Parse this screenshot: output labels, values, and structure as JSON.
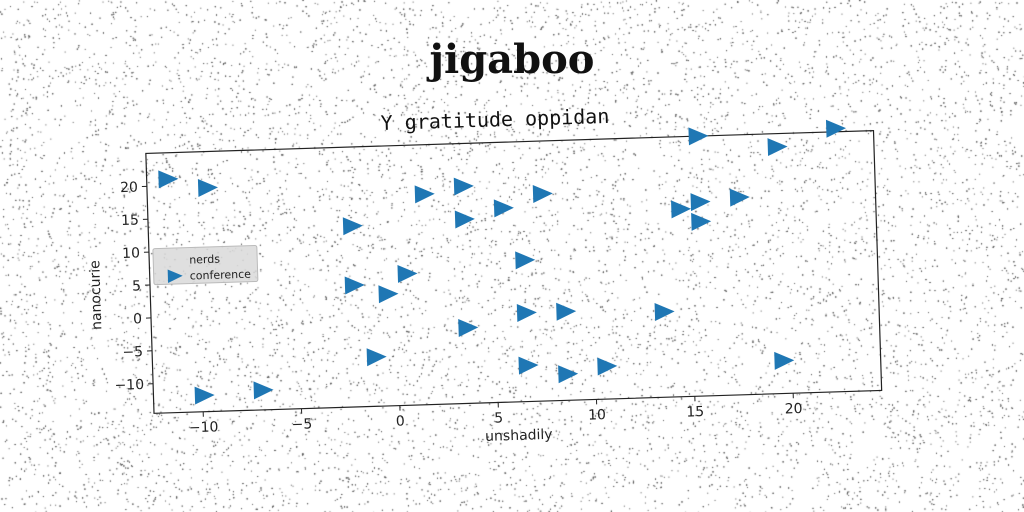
{
  "page": {
    "title": "jigaboo"
  },
  "chart_data": {
    "type": "scatter",
    "title": "Y gratitude oppidan",
    "xlabel": "unshadily",
    "ylabel": "nanocurie",
    "xlim": [
      -12.5,
      24.5
    ],
    "ylim": [
      -14.5,
      25
    ],
    "xticks": [
      -10,
      -5,
      0,
      5,
      10,
      15,
      20
    ],
    "yticks": [
      -10,
      -5,
      0,
      5,
      10,
      15,
      20
    ],
    "grid": false,
    "legend": {
      "placement": "center-left",
      "entries": [
        "nerds",
        "conference"
      ]
    },
    "series": [
      {
        "name": "nerds",
        "marker": "none",
        "color": "#1f77b4",
        "x": [],
        "y": []
      },
      {
        "name": "conference",
        "marker": "triangle-right",
        "color": "#1f77b4",
        "x": [
          -11.5,
          -9.5,
          -2.2,
          1.5,
          3.5,
          5.5,
          7.5,
          3.5,
          15.5,
          19.5,
          22.5,
          14.5,
          15.5,
          17.5,
          15.5,
          -2.2,
          0.5,
          6.5,
          -0.5,
          6.5,
          8.5,
          13.5,
          3.5,
          -1.2,
          6.5,
          8.5,
          10.5,
          19.5,
          -10.0,
          -7.0
        ],
        "y": [
          21.0,
          19.5,
          13.0,
          17.5,
          18.5,
          15.0,
          17.0,
          13.5,
          25.0,
          23.0,
          25.5,
          14.0,
          15.0,
          15.5,
          12.0,
          4.0,
          5.5,
          7.0,
          2.5,
          -1.0,
          -1.0,
          -1.5,
          -3.0,
          -7.0,
          -9.0,
          -10.5,
          -9.5,
          -9.5,
          -12.0,
          -11.5
        ]
      }
    ]
  }
}
